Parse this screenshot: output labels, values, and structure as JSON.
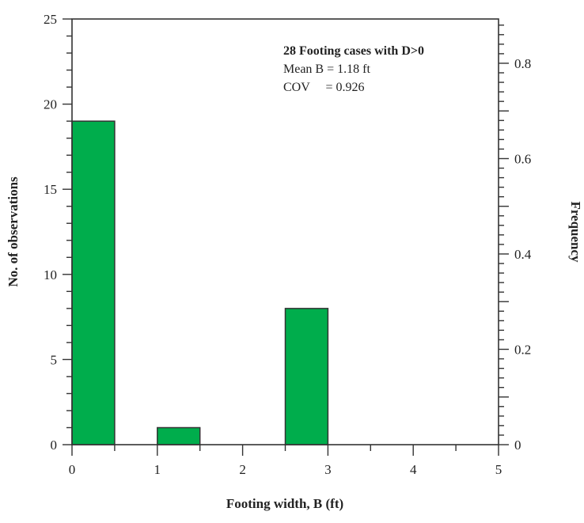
{
  "chart_data": {
    "type": "bar",
    "title": "",
    "xlabel": "Footing width, B (ft)",
    "ylabel": "No. of observations",
    "y2label": "Frequency",
    "xlim": [
      0,
      5
    ],
    "ylim": [
      0,
      25
    ],
    "y2lim": [
      0,
      0.893
    ],
    "x_ticks": [
      0,
      1,
      2,
      3,
      4,
      5
    ],
    "y_ticks": [
      0,
      5,
      10,
      15,
      20,
      25
    ],
    "y2_ticks": [
      0,
      0.2,
      0.4,
      0.6,
      0.8
    ],
    "y2_tick_labels": [
      "0",
      "0.2",
      "0.4",
      "0.6",
      "0.8"
    ],
    "bins": [
      {
        "x0": 0,
        "x1": 0.5,
        "count": 19
      },
      {
        "x0": 1,
        "x1": 1.5,
        "count": 1
      },
      {
        "x0": 2.5,
        "x1": 3,
        "count": 8
      }
    ],
    "bar_color": "#00ad4c",
    "grid": false,
    "annotations": [
      "28 Footing cases with D>0",
      "Mean B = 1.18 ft",
      "COV     = 0.926"
    ]
  }
}
